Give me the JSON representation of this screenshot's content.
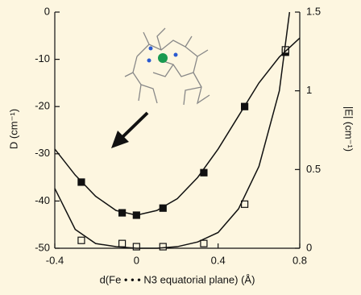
{
  "chart_data": {
    "type": "scatter",
    "x_label": "d(Fe • • • N3 equatorial plane) (Å)",
    "y_label": "D  (cm⁻¹)",
    "y2_label": "|E|  (cm⁻¹)",
    "xlim": [
      -0.4,
      0.8
    ],
    "xticks": [
      -0.4,
      0,
      0.4,
      0.8
    ],
    "ylim": [
      -50,
      0
    ],
    "yticks": [
      0,
      -10,
      -20,
      -30,
      -40,
      -50
    ],
    "y2lim": [
      0,
      1.5
    ],
    "y2ticks": [
      0,
      0.5,
      1,
      1.5
    ],
    "series": [
      {
        "color": "#111111",
        "marker": "filled",
        "x": [
          -0.27,
          -0.07,
          0,
          0.13,
          0.33,
          0.53,
          0.73
        ],
        "values": [
          -36,
          -42.5,
          -43,
          -41.5,
          -34,
          -20,
          -8.5
        ]
      },
      {
        "color": "#111111",
        "marker": "open",
        "axis": "y2",
        "x": [
          -0.27,
          -0.07,
          0,
          0.13,
          0.33,
          0.53,
          0.73
        ],
        "values": [
          0.05,
          0.03,
          0.01,
          0.01,
          0.03,
          0.28,
          1.26
        ]
      },
      {
        "color": "#111111",
        "marker": "none",
        "x": [
          -0.4,
          -0.3,
          -0.2,
          -0.1,
          0,
          0.1,
          0.2,
          0.3,
          0.4,
          0.5,
          0.6,
          0.7,
          0.8
        ],
        "values": [
          -29,
          -34.5,
          -39,
          -42,
          -43,
          -42,
          -39.5,
          -35,
          -29,
          -22,
          -15,
          -9.5,
          -5.5
        ]
      },
      {
        "color": "#111111",
        "marker": "none",
        "axis": "y2",
        "x": [
          -0.4,
          -0.3,
          -0.2,
          -0.1,
          0,
          0.1,
          0.2,
          0.3,
          0.4,
          0.5,
          0.6,
          0.7,
          0.75
        ],
        "values": [
          0.38,
          0.12,
          0.03,
          0.01,
          0,
          0,
          0.01,
          0.04,
          0.1,
          0.25,
          0.52,
          1.0,
          1.5
        ]
      }
    ]
  }
}
